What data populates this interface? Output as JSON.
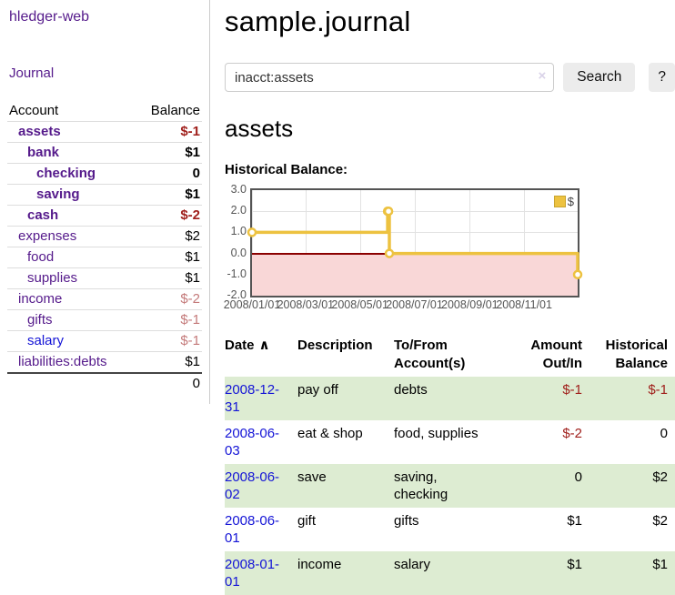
{
  "colors": {
    "accent_purple": "#551a8b",
    "link_blue": "#1414d6",
    "negative": "#a0201c",
    "negative_soft": "#c47a7a",
    "row_stripe_green": "#ddecd2",
    "chart_line_gold": "#edc240",
    "chart_negative_fill": "#f9d7d7",
    "chart_zero_line": "#8b0000"
  },
  "app": {
    "brand": "hledger-web",
    "nav": {
      "journal": "Journal"
    }
  },
  "sidebar": {
    "table": {
      "account_header": "Account",
      "balance_header": "Balance",
      "rows": [
        {
          "name": "assets",
          "balance": "$-1",
          "indent": 0,
          "bold": true
        },
        {
          "name": "bank",
          "balance": "$1",
          "indent": 1,
          "bold": true
        },
        {
          "name": "checking",
          "balance": "0",
          "indent": 2,
          "bold": true
        },
        {
          "name": "saving",
          "balance": "$1",
          "indent": 2,
          "bold": true
        },
        {
          "name": "cash",
          "balance": "$-2",
          "indent": 1,
          "bold": true
        },
        {
          "name": "expenses",
          "balance": "$2",
          "indent": 0,
          "bold": false
        },
        {
          "name": "food",
          "balance": "$1",
          "indent": 1,
          "bold": false
        },
        {
          "name": "supplies",
          "balance": "$1",
          "indent": 1,
          "bold": false
        },
        {
          "name": "income",
          "balance": "$-2",
          "indent": 0,
          "bold": false
        },
        {
          "name": "gifts",
          "balance": "$-1",
          "indent": 1,
          "bold": false
        },
        {
          "name": "salary",
          "balance": "$-1",
          "indent": 1,
          "bold": false,
          "link_color": "blue"
        },
        {
          "name": "liabilities:debts",
          "balance": "$1",
          "indent": 0,
          "bold": false
        }
      ],
      "total": "0"
    }
  },
  "main": {
    "title": "sample.journal",
    "search": {
      "value": "inacct:assets",
      "clear_label": "×",
      "search_button": "Search",
      "help_button": "?"
    },
    "account_heading": "assets",
    "chart_heading": "Historical Balance:"
  },
  "chart_data": {
    "type": "line",
    "step": true,
    "title": "Historical Balance:",
    "series": [
      {
        "name": "$",
        "color": "#edc240",
        "points": [
          {
            "date": "2008-01-01",
            "value": 1
          },
          {
            "date": "2008-06-01",
            "value": 2
          },
          {
            "date": "2008-06-02",
            "value": 2
          },
          {
            "date": "2008-06-03",
            "value": 0
          },
          {
            "date": "2008-12-31",
            "value": -1
          }
        ]
      }
    ],
    "x_start": "2008-01-01",
    "x_end": "2008-12-31",
    "x_ticks": [
      "2008/01/01",
      "2008/03/01",
      "2008/05/01",
      "2008/07/01",
      "2008/09/01",
      "2008/11/01"
    ],
    "y_ticks": [
      3,
      2,
      1,
      0,
      -1,
      -2
    ],
    "y_tick_labels": [
      "3.0",
      "2.0",
      "1.0",
      "0.0",
      "-1.0",
      "-2.0"
    ],
    "ylim": [
      -2,
      3
    ],
    "grid": true,
    "legend": {
      "label": "$",
      "position": "top-right"
    },
    "negative_region_fill": "#f9d7d7",
    "zero_line_color": "#8b0000"
  },
  "register": {
    "headers": {
      "date": "Date",
      "sort_indicator": "∧",
      "description": "Description",
      "accounts": "To/From\nAccount(s)",
      "amount": "Amount\nOut/In",
      "balance": "Historical\nBalance"
    },
    "rows": [
      {
        "date": "2008-12-31",
        "description": "pay off",
        "accounts": "debts",
        "amount": "$-1",
        "balance": "$-1"
      },
      {
        "date": "2008-06-03",
        "description": "eat & shop",
        "accounts": "food, supplies",
        "amount": "$-2",
        "balance": "0"
      },
      {
        "date": "2008-06-02",
        "description": "save",
        "accounts": "saving,\nchecking",
        "amount": "0",
        "balance": "$2"
      },
      {
        "date": "2008-06-01",
        "description": "gift",
        "accounts": "gifts",
        "amount": "$1",
        "balance": "$2"
      },
      {
        "date": "2008-01-01",
        "description": "income",
        "accounts": "salary",
        "amount": "$1",
        "balance": "$1"
      }
    ]
  }
}
